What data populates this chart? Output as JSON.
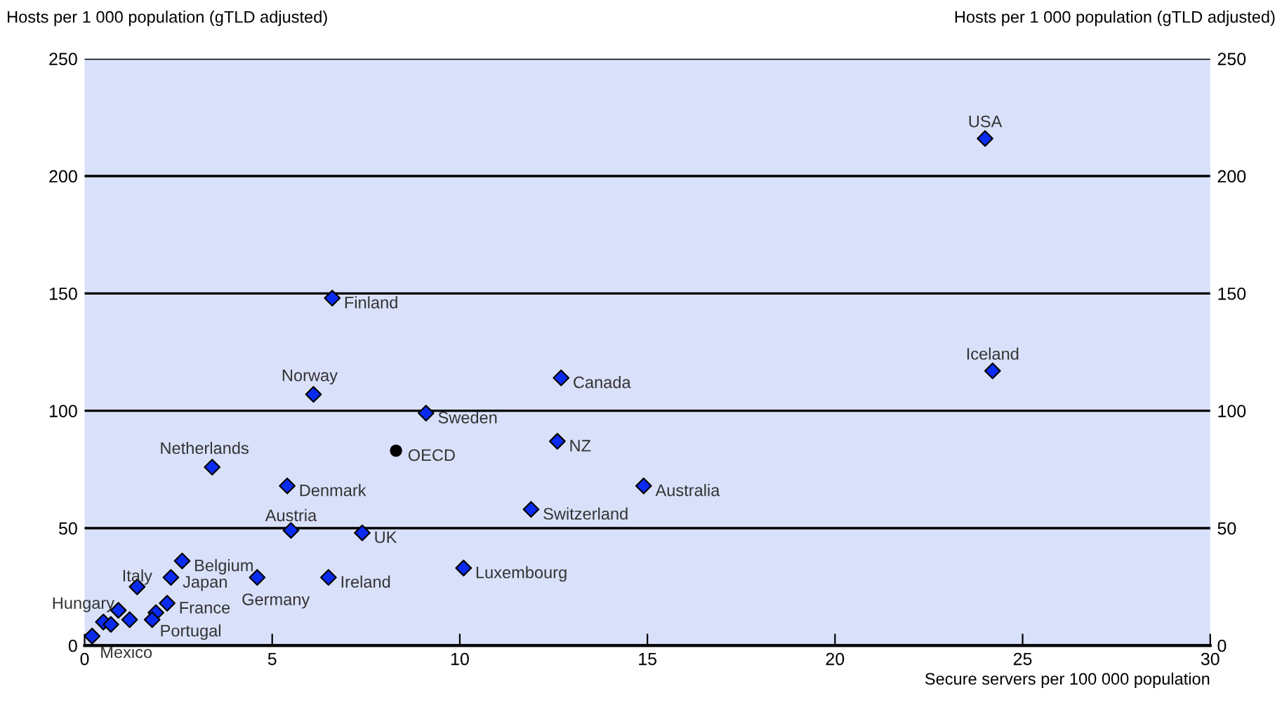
{
  "chart_data": {
    "type": "scatter",
    "xlabel": "Secure servers per 100 000 population",
    "ylabel": "Hosts per 1 000 population (gTLD adjusted)",
    "y2label": "Hosts per 1 000 population (gTLD adjusted)",
    "series": [
      {
        "color": "#0a2bf0",
        "marker": "diamond",
        "x": [
          24.0,
          24.2,
          6.6,
          12.7,
          6.1,
          9.1,
          12.6,
          3.4,
          5.4,
          14.9,
          11.9,
          5.5,
          7.4,
          10.1,
          2.6,
          2.3,
          1.4,
          4.6,
          6.5,
          2.2,
          0.9,
          1.9,
          0.2,
          0.5,
          0.7,
          1.2,
          1.8
        ],
        "values": [
          216,
          117,
          148,
          114,
          107,
          99,
          87,
          76,
          68,
          68,
          58,
          49,
          48,
          33,
          36,
          29,
          25,
          29,
          29,
          18,
          15,
          14,
          4,
          10,
          9,
          11,
          11
        ]
      },
      {
        "color": "#000000",
        "marker": "circle",
        "x": [
          8.3
        ],
        "values": [
          83
        ]
      }
    ],
    "annotations": [
      {
        "text": "USA",
        "x": 24.0,
        "y": 216
      },
      {
        "text": "Iceland",
        "x": 24.2,
        "y": 117
      },
      {
        "text": "Finland",
        "x": 6.6,
        "y": 148
      },
      {
        "text": "Canada",
        "x": 12.7,
        "y": 114
      },
      {
        "text": "Norway",
        "x": 6.1,
        "y": 107
      },
      {
        "text": "Sweden",
        "x": 9.1,
        "y": 99
      },
      {
        "text": "OECD",
        "x": 8.3,
        "y": 83
      },
      {
        "text": "NZ",
        "x": 12.6,
        "y": 87
      },
      {
        "text": "Netherlands",
        "x": 3.4,
        "y": 76
      },
      {
        "text": "Denmark",
        "x": 5.4,
        "y": 68
      },
      {
        "text": "Australia",
        "x": 14.9,
        "y": 68
      },
      {
        "text": "Switzerland",
        "x": 11.9,
        "y": 58
      },
      {
        "text": "Austria",
        "x": 5.5,
        "y": 49
      },
      {
        "text": "UK",
        "x": 7.4,
        "y": 48
      },
      {
        "text": "Luxembourg",
        "x": 10.1,
        "y": 33
      },
      {
        "text": "Belgium",
        "x": 2.6,
        "y": 36
      },
      {
        "text": "Japan",
        "x": 2.3,
        "y": 29
      },
      {
        "text": "Italy",
        "x": 1.4,
        "y": 25
      },
      {
        "text": "Germany",
        "x": 4.6,
        "y": 29
      },
      {
        "text": "Ireland",
        "x": 6.5,
        "y": 29
      },
      {
        "text": "France",
        "x": 2.2,
        "y": 18
      },
      {
        "text": "Hungary",
        "x": 0.9,
        "y": 15
      },
      {
        "text": "Portugal",
        "x": 1.9,
        "y": 14
      },
      {
        "text": "Mexico",
        "x": 0.2,
        "y": 4
      }
    ],
    "xlim": [
      0,
      30
    ],
    "xticks": [
      0,
      5,
      10,
      15,
      20,
      25,
      30
    ],
    "ylim": [
      0,
      250
    ],
    "yticks": [
      0,
      50,
      100,
      150,
      200,
      250
    ],
    "y2lim": [
      0,
      250
    ],
    "y2ticks": [
      0,
      50,
      100,
      150,
      200,
      250
    ],
    "grid": "y"
  }
}
